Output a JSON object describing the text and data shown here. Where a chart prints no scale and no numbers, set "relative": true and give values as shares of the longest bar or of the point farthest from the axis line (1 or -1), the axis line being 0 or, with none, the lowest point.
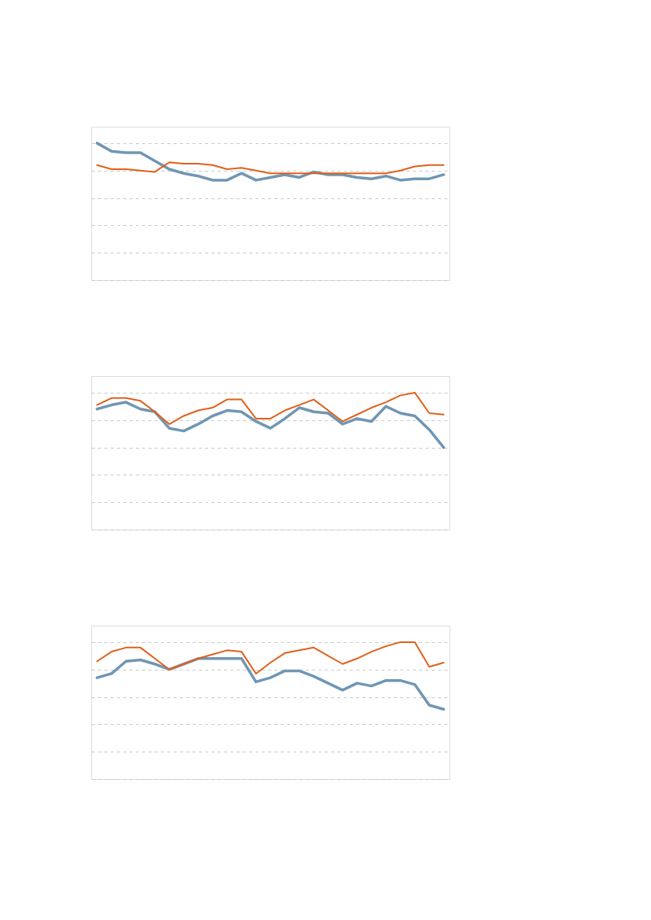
{
  "chart_data": [
    {
      "type": "line",
      "relative": true,
      "grid": "y",
      "line_style": "solid",
      "marker": "none",
      "categories": [
        null,
        null,
        null,
        null,
        null,
        null,
        null,
        null,
        null,
        null,
        null,
        null,
        null,
        null,
        null,
        null,
        null,
        null,
        null,
        null,
        null,
        null,
        null,
        null,
        null
      ],
      "series": [
        {
          "color": "#7096b4",
          "values": [
            1.0,
            0.94,
            0.93,
            0.93,
            0.87,
            0.81,
            0.78,
            0.76,
            0.73,
            0.73,
            0.78,
            0.73,
            0.75,
            0.77,
            0.75,
            0.79,
            0.77,
            0.77,
            0.75,
            0.74,
            0.76,
            0.73,
            0.74,
            0.74,
            0.77
          ]
        },
        {
          "color": "#e0601a",
          "values": [
            0.84,
            0.81,
            0.81,
            0.8,
            0.79,
            0.86,
            0.85,
            0.85,
            0.84,
            0.81,
            0.82,
            0.8,
            0.78,
            0.78,
            0.78,
            0.78,
            0.78,
            0.78,
            0.78,
            0.78,
            0.78,
            0.8,
            0.83,
            0.84,
            0.84
          ]
        }
      ]
    },
    {
      "type": "line",
      "relative": true,
      "grid": "y",
      "line_style": "solid",
      "marker": "none",
      "categories": [
        null,
        null,
        null,
        null,
        null,
        null,
        null,
        null,
        null,
        null,
        null,
        null,
        null,
        null,
        null,
        null,
        null,
        null,
        null,
        null,
        null,
        null,
        null,
        null,
        null
      ],
      "series": [
        {
          "color": "#7096b4",
          "values": [
            0.88,
            0.91,
            0.93,
            0.88,
            0.86,
            0.74,
            0.72,
            0.77,
            0.83,
            0.87,
            0.86,
            0.79,
            0.74,
            0.81,
            0.89,
            0.86,
            0.85,
            0.77,
            0.81,
            0.79,
            0.9,
            0.85,
            0.83,
            0.73,
            0.6
          ]
        },
        {
          "color": "#e0601a",
          "values": [
            0.91,
            0.96,
            0.96,
            0.94,
            0.86,
            0.77,
            0.83,
            0.87,
            0.89,
            0.95,
            0.95,
            0.81,
            0.81,
            0.87,
            0.91,
            0.95,
            0.87,
            0.79,
            0.84,
            0.89,
            0.93,
            0.98,
            1.0,
            0.85,
            0.84
          ]
        }
      ]
    },
    {
      "type": "line",
      "relative": true,
      "grid": "y",
      "line_style": "solid",
      "marker": "none",
      "categories": [
        null,
        null,
        null,
        null,
        null,
        null,
        null,
        null,
        null,
        null,
        null,
        null,
        null,
        null,
        null,
        null,
        null,
        null,
        null,
        null,
        null,
        null,
        null,
        null,
        null
      ],
      "series": [
        {
          "color": "#7096b4",
          "values": [
            0.74,
            0.77,
            0.86,
            0.87,
            0.84,
            0.8,
            0.84,
            0.88,
            0.88,
            0.88,
            0.88,
            0.71,
            0.74,
            0.79,
            0.79,
            0.75,
            0.7,
            0.65,
            0.7,
            0.68,
            0.72,
            0.72,
            0.69,
            0.54,
            0.51
          ]
        },
        {
          "color": "#e0601a",
          "values": [
            0.86,
            0.93,
            0.96,
            0.96,
            0.88,
            0.8,
            0.84,
            0.88,
            0.91,
            0.94,
            0.93,
            0.77,
            0.85,
            0.92,
            0.94,
            0.96,
            0.9,
            0.84,
            0.88,
            0.93,
            0.97,
            1.0,
            1.0,
            0.82,
            0.85
          ]
        }
      ]
    }
  ]
}
